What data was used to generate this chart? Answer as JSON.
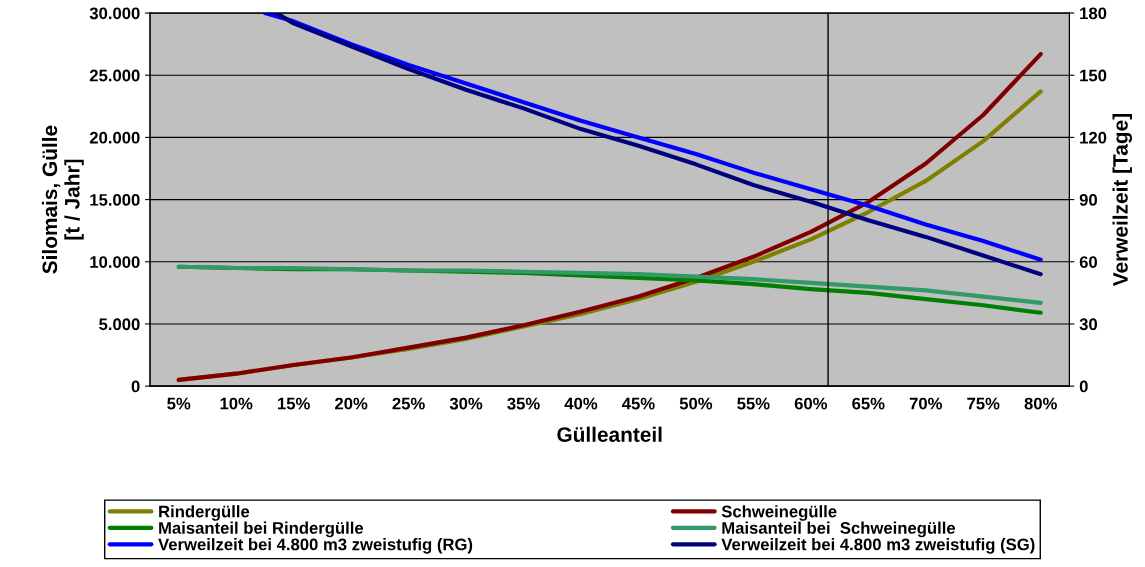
{
  "chart_data": {
    "type": "line",
    "xlabel": "Gülleanteil",
    "ylabel": "Silomais, Gülle\n[t / Jahr]",
    "y2label": "Verweilzeit [Tage]",
    "x": [
      5,
      10,
      15,
      20,
      25,
      30,
      35,
      40,
      45,
      50,
      55,
      60,
      65,
      70,
      75,
      80
    ],
    "xlim": [
      2.5,
      82.5
    ],
    "xticks": [
      {
        "value": 5,
        "label": "5%"
      },
      {
        "value": 10,
        "label": "10%"
      },
      {
        "value": 15,
        "label": "15%"
      },
      {
        "value": 20,
        "label": "20%"
      },
      {
        "value": 25,
        "label": "25%"
      },
      {
        "value": 30,
        "label": "30%"
      },
      {
        "value": 35,
        "label": "35%"
      },
      {
        "value": 40,
        "label": "40%"
      },
      {
        "value": 45,
        "label": "45%"
      },
      {
        "value": 50,
        "label": "50%"
      },
      {
        "value": 55,
        "label": "55%"
      },
      {
        "value": 60,
        "label": "60%"
      },
      {
        "value": 65,
        "label": "65%"
      },
      {
        "value": 70,
        "label": "70%"
      },
      {
        "value": 75,
        "label": "75%"
      },
      {
        "value": 80,
        "label": "80%"
      }
    ],
    "ylim": [
      0,
      30000
    ],
    "yticks": [
      {
        "value": 0,
        "label": "0"
      },
      {
        "value": 5000,
        "label": "5.000"
      },
      {
        "value": 10000,
        "label": "10.000"
      },
      {
        "value": 15000,
        "label": "15.000"
      },
      {
        "value": 20000,
        "label": "20.000"
      },
      {
        "value": 25000,
        "label": "25.000"
      },
      {
        "value": 30000,
        "label": "30.000"
      }
    ],
    "y2lim": [
      0,
      180
    ],
    "y2ticks": [
      0,
      30,
      60,
      90,
      120,
      150,
      180
    ],
    "grid": "y",
    "legend": "bottom",
    "marker": "none",
    "line_style": "solid",
    "ref_lines": [
      {
        "axis": "x",
        "value": 61.5,
        "color": "#000000"
      }
    ],
    "series": [
      {
        "name": "Rindergülle",
        "color": "#808000",
        "values": [
          500,
          1000,
          1700,
          2300,
          3000,
          3800,
          4800,
          5800,
          7000,
          8400,
          10000,
          11800,
          14000,
          16500,
          19700,
          23700
        ]
      },
      {
        "name": "Schweinegülle",
        "color": "#800000",
        "values": [
          500,
          1000,
          1700,
          2300,
          3100,
          3900,
          4900,
          6000,
          7200,
          8700,
          10400,
          12400,
          14800,
          17900,
          21800,
          26700
        ]
      },
      {
        "name": "Maisanteil bei Rindergülle",
        "color": "#008000",
        "values": [
          9600,
          9500,
          9400,
          9400,
          9300,
          9200,
          9100,
          8900,
          8700,
          8500,
          8200,
          7800,
          7500,
          7000,
          6500,
          5900
        ]
      },
      {
        "name": "Maisanteil bei  Schweinegülle",
        "color": "#339966",
        "values": [
          9600,
          9500,
          9500,
          9400,
          9300,
          9300,
          9200,
          9100,
          9000,
          8800,
          8600,
          8300,
          8000,
          7700,
          7200,
          6700
        ]
      },
      {
        "name": "Verweilzeit bei 4.800 m3 zweistufig (RG)",
        "color": "#0000ff",
        "axis": "y2",
        "x": [
          12.5,
          15,
          20,
          25,
          30,
          35,
          40,
          45,
          50,
          55,
          60,
          65,
          70,
          75,
          80
        ],
        "values": [
          180,
          176,
          165,
          155,
          146,
          137,
          128,
          120,
          112,
          103,
          95,
          87,
          78,
          70,
          61
        ]
      },
      {
        "name": "Verweilzeit bei 4.800 m3 zweistufig (SG)",
        "color": "#000080",
        "axis": "y2",
        "x": [
          13.5,
          15,
          20,
          25,
          30,
          35,
          40,
          45,
          50,
          55,
          60,
          65,
          70,
          75,
          80
        ],
        "values": [
          180,
          175,
          164,
          153,
          143,
          134,
          124,
          116,
          107,
          97,
          89,
          80,
          72,
          63,
          54
        ]
      }
    ]
  }
}
